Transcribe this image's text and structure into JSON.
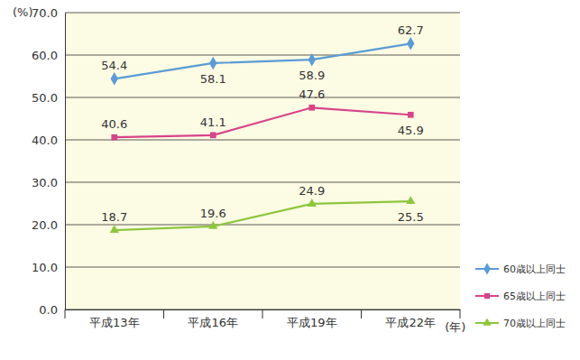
{
  "chart_data": {
    "type": "line",
    "categories": [
      "平成13年",
      "平成16年",
      "平成19年",
      "平成22年"
    ],
    "xlabel": "(年)",
    "ylabel": "(%)",
    "series": [
      {
        "name": "60歳以上同士",
        "color": "#5b9bd5",
        "marker": "diamond",
        "values": [
          54.4,
          58.1,
          58.9,
          62.7
        ]
      },
      {
        "name": "65歳以上同士",
        "color": "#d6448a",
        "marker": "square",
        "values": [
          40.6,
          41.1,
          47.6,
          45.9
        ]
      },
      {
        "name": "70歳以上同士",
        "color": "#8dc63f",
        "marker": "triangle",
        "values": [
          18.7,
          19.6,
          24.9,
          25.5
        ]
      }
    ],
    "ylim": [
      0,
      70
    ],
    "yticks": [
      {
        "value": 0,
        "label": "0.0"
      },
      {
        "value": 10,
        "label": "10.0"
      },
      {
        "value": 20,
        "label": "20.0"
      },
      {
        "value": 30,
        "label": "30.0"
      },
      {
        "value": 40,
        "label": "40.0"
      },
      {
        "value": 50,
        "label": "50.0"
      },
      {
        "value": 60,
        "label": "60.0"
      },
      {
        "value": 70,
        "label": "70.0"
      }
    ],
    "grid": true,
    "legend": "right",
    "data_labels": true
  }
}
